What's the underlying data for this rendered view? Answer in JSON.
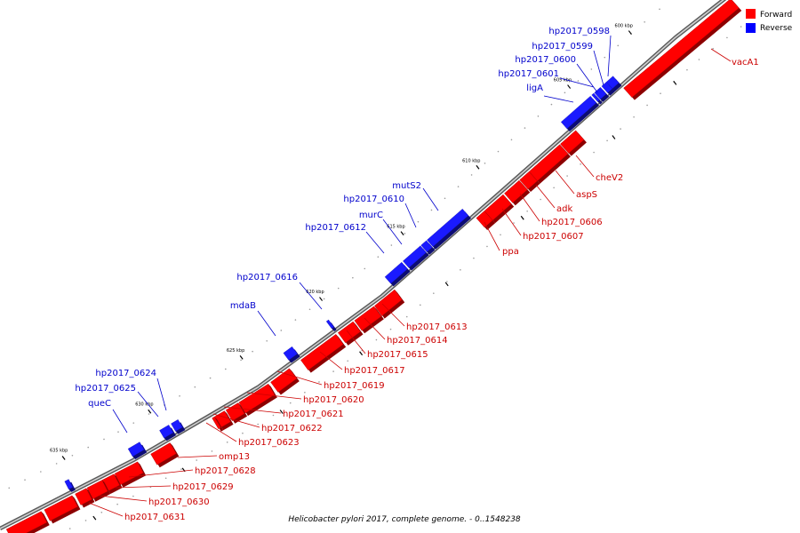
{
  "caption": "Helicobacter pylori 2017, complete genome. - 0..1548238",
  "legend": [
    {
      "label": "Forward",
      "color": "#ff0000"
    },
    {
      "label": "Reverse",
      "color": "#0000ff"
    }
  ],
  "colors": {
    "forward": "#ff0000",
    "reverse": "#1a1aff",
    "axis": "#808080"
  },
  "ticks": [
    "600 kbp",
    "605 kbp",
    "610 kbp",
    "615 kbp",
    "620 kbp",
    "625 kbp",
    "630 kbp",
    "635 kbp"
  ],
  "forward_labels": [
    "vacA1",
    "cheV2",
    "aspS",
    "adk",
    "hp2017_0606",
    "hp2017_0607",
    "ppa",
    "hp2017_0613",
    "hp2017_0614",
    "hp2017_0615",
    "hp2017_0617",
    "hp2017_0619",
    "hp2017_0620",
    "hp2017_0621",
    "hp2017_0622",
    "hp2017_0623",
    "omp13",
    "hp2017_0628",
    "hp2017_0629",
    "hp2017_0630",
    "hp2017_0631"
  ],
  "reverse_labels": [
    "hp2017_0598",
    "hp2017_0599",
    "hp2017_0600",
    "hp2017_0601",
    "ligA",
    "mutS2",
    "hp2017_0610",
    "murC",
    "hp2017_0612",
    "hp2017_0616",
    "mdaB",
    "hp2017_0624",
    "hp2017_0625",
    "queC"
  ]
}
